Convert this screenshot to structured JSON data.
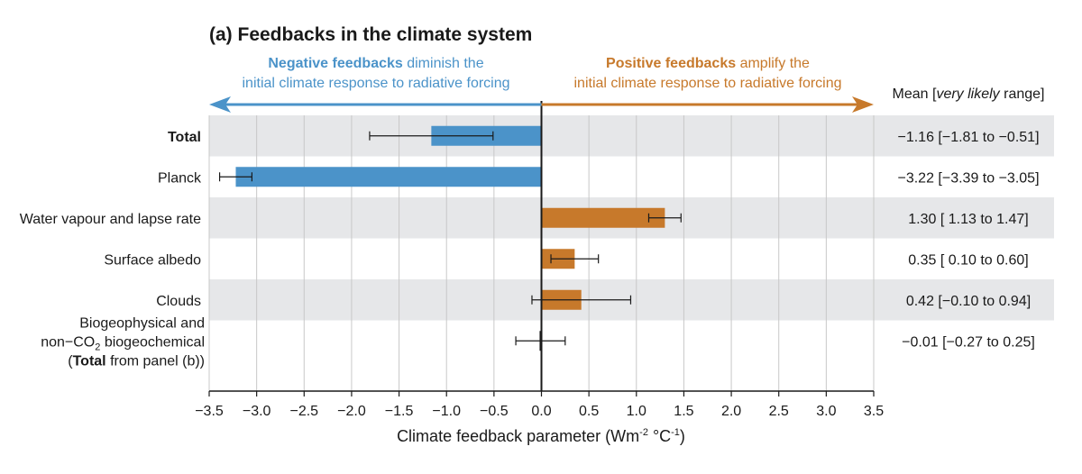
{
  "chart_data": {
    "type": "bar",
    "orientation": "horizontal",
    "title": "(a) Feedbacks in the climate system",
    "negative_note": {
      "bold": "Negative feedbacks",
      "rest": " diminish the",
      "line2": "initial climate response to radiative forcing"
    },
    "positive_note": {
      "bold": "Positive feedbacks",
      "rest": " amplify the",
      "line2": "initial climate response to radiative forcing"
    },
    "xlabel": {
      "main": "Climate feedback parameter (Wm",
      "sup1": "-2",
      "mid": " °C",
      "sup2": "-1",
      "end": ")"
    },
    "xlim": [
      -3.5,
      3.5
    ],
    "xticks": [
      "−3.5",
      "−3.0",
      "−2.5",
      "−2.0",
      "−1.5",
      "−1.0",
      "−0.5",
      "0.0",
      "0.5",
      "1.0",
      "1.5",
      "2.0",
      "2.5",
      "3.0",
      "3.5"
    ],
    "xtick_values": [
      -3.5,
      -3.0,
      -2.5,
      -2.0,
      -1.5,
      -1.0,
      -0.5,
      0.0,
      0.5,
      1.0,
      1.5,
      2.0,
      2.5,
      3.0,
      3.5
    ],
    "grid": "vertical",
    "range_header": {
      "pre": "Mean [",
      "italic": "very likely",
      "post": " range]"
    },
    "colors": {
      "negative": "#4b93c9",
      "positive": "#c7792b",
      "band": "#e6e7e9",
      "grid": "#c8c8c8"
    },
    "rows": [
      {
        "label": "Total",
        "bold": true,
        "value": -1.16,
        "low": -1.81,
        "high": -0.51,
        "range_text": "−1.16 [−1.81 to −0.51]"
      },
      {
        "label": "Planck",
        "bold": false,
        "value": -3.22,
        "low": -3.39,
        "high": -3.05,
        "range_text": "−3.22 [−3.39 to −3.05]"
      },
      {
        "label": "Water vapour and lapse rate",
        "bold": false,
        "value": 1.3,
        "low": 1.13,
        "high": 1.47,
        "range_text": "1.30 [ 1.13 to 1.47]"
      },
      {
        "label": "Surface albedo",
        "bold": false,
        "value": 0.35,
        "low": 0.1,
        "high": 0.6,
        "range_text": "0.35 [ 0.10 to 0.60]"
      },
      {
        "label": "Clouds",
        "bold": false,
        "value": 0.42,
        "low": -0.1,
        "high": 0.94,
        "range_text": "0.42 [−0.10 to 0.94]"
      },
      {
        "label_lines": [
          "Biogeophysical and",
          "non−CO₂ biogeochemical",
          "(Total from panel (b))"
        ],
        "value": -0.01,
        "low": -0.27,
        "high": 0.25,
        "range_text": "−0.01 [−0.27 to 0.25]"
      }
    ]
  }
}
